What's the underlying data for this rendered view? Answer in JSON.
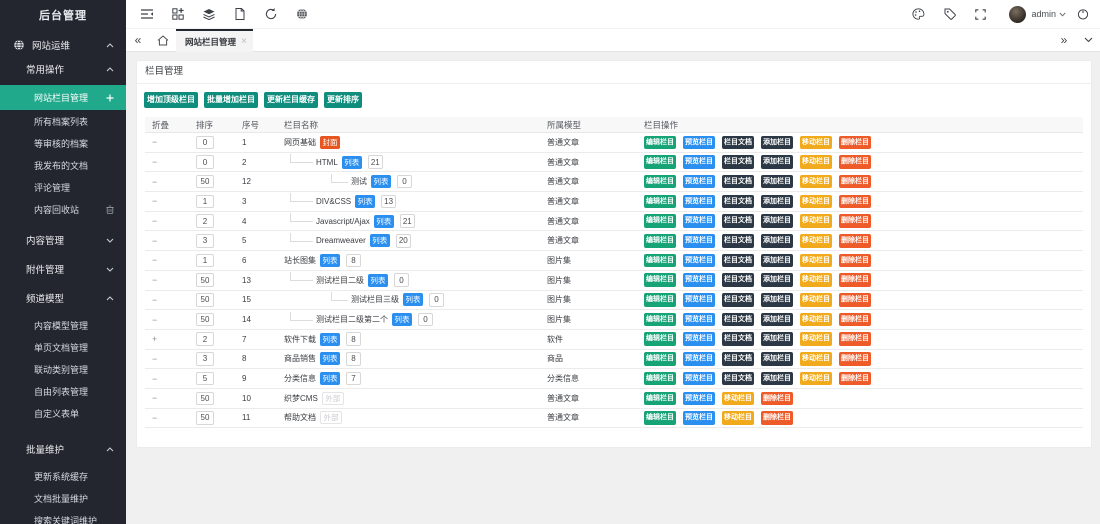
{
  "colors": {
    "accent": "#20a98b",
    "toolbar_button": "#108d7c",
    "btn_edit": "#16a376",
    "btn_preview": "#2b8ff0",
    "btn_dark": "#2c3845",
    "btn_move": "#f2aa1d",
    "btn_delete": "#ee5a28",
    "tag_cover": "#e8561f",
    "tag_list": "#2b8ff0"
  },
  "sidebar": {
    "brand": "后台管理",
    "root_item": {
      "label": "网站运维",
      "icon": "globe-icon",
      "chevron": "up"
    },
    "sections": [
      {
        "label": "常用操作",
        "chevron": "up",
        "items": [
          {
            "label": "网站栏目管理",
            "active": true,
            "trailing_icon": "plus-icon"
          },
          {
            "label": "所有档案列表"
          },
          {
            "label": "等审核的档案"
          },
          {
            "label": "我发布的文档"
          },
          {
            "label": "评论管理"
          },
          {
            "label": "内容回收站",
            "trailing_icon": "trash-icon"
          }
        ]
      },
      {
        "label": "内容管理",
        "chevron": "down",
        "items": []
      },
      {
        "label": "附件管理",
        "chevron": "down",
        "items": []
      },
      {
        "label": "频道模型",
        "chevron": "up",
        "items": [
          {
            "label": "内容模型管理"
          },
          {
            "label": "单页文档管理"
          },
          {
            "label": "联动类别管理"
          },
          {
            "label": "自由列表管理"
          },
          {
            "label": "自定义表单"
          }
        ]
      },
      {
        "label": "批量维护",
        "chevron": "up",
        "items": [
          {
            "label": "更新系统缓存"
          },
          {
            "label": "文档批量维护"
          },
          {
            "label": "搜索关键词维护"
          }
        ]
      }
    ]
  },
  "topbar": {
    "left_icons": [
      "menu-fold-icon",
      "add-grid-icon",
      "layers-icon",
      "document-icon",
      "refresh-icon",
      "globe-grid-icon"
    ],
    "right_icons": [
      "palette-icon",
      "tag-icon",
      "fullscreen-icon"
    ],
    "user": {
      "name": "admin",
      "avatar_icon": "avatar",
      "chevron_icon": "user-chevron-down-icon"
    },
    "power_icon": "power-icon"
  },
  "tabbar": {
    "scroll_left": "«",
    "home_icon": "home-icon",
    "collapse_icon": "tab-chevron-down-icon",
    "tabs": [
      {
        "label": "网站栏目管理",
        "active": true,
        "close": "×"
      }
    ],
    "overflow": "»"
  },
  "panel": {
    "title": "栏目管理",
    "toolbar_buttons": [
      "增加顶级栏目",
      "批量增加栏目",
      "更新栏目缓存",
      "更新排序"
    ]
  },
  "table": {
    "columns": [
      "折叠",
      "排序",
      "序号",
      "栏目名称",
      "所属模型",
      "栏目操作"
    ],
    "action_full": [
      "编辑栏目",
      "预览栏目",
      "栏目文档",
      "添加栏目",
      "移动栏目",
      "删除栏目"
    ],
    "action_limited": [
      "编辑栏目",
      "预览栏目",
      "移动栏目",
      "删除栏目"
    ],
    "rows": [
      {
        "fold": "−",
        "sort": "0",
        "sn": "1",
        "level": 0,
        "name": "网页基础",
        "tag": "封面",
        "tag_type": "cover",
        "count": null,
        "model": "普通文章",
        "actions": "full"
      },
      {
        "fold": "−",
        "sort": "0",
        "sn": "2",
        "level": 1,
        "name": "HTML",
        "tag": "列表",
        "tag_type": "list",
        "count": "21",
        "model": "普通文章",
        "actions": "full"
      },
      {
        "fold": "−",
        "sort": "50",
        "sn": "12",
        "level": 2,
        "name": "测试",
        "tag": "列表",
        "tag_type": "list",
        "count": "0",
        "model": "普通文章",
        "actions": "full"
      },
      {
        "fold": "−",
        "sort": "1",
        "sn": "3",
        "level": 1,
        "name": "DIV&CSS",
        "tag": "列表",
        "tag_type": "list",
        "count": "13",
        "model": "普通文章",
        "actions": "full"
      },
      {
        "fold": "−",
        "sort": "2",
        "sn": "4",
        "level": 1,
        "name": "Javascript/Ajax",
        "tag": "列表",
        "tag_type": "list",
        "count": "21",
        "model": "普通文章",
        "actions": "full"
      },
      {
        "fold": "−",
        "sort": "3",
        "sn": "5",
        "level": 1,
        "name": "Dreamweaver",
        "tag": "列表",
        "tag_type": "list",
        "count": "20",
        "model": "普通文章",
        "actions": "full"
      },
      {
        "fold": "−",
        "sort": "1",
        "sn": "6",
        "level": 0,
        "name": "站长图集",
        "tag": "列表",
        "tag_type": "list",
        "count": "8",
        "model": "图片集",
        "actions": "full"
      },
      {
        "fold": "−",
        "sort": "50",
        "sn": "13",
        "level": 1,
        "name": "测试栏目二级",
        "tag": "列表",
        "tag_type": "list",
        "count": "0",
        "model": "图片集",
        "actions": "full"
      },
      {
        "fold": "−",
        "sort": "50",
        "sn": "15",
        "level": 2,
        "name": "测试栏目三级",
        "tag": "列表",
        "tag_type": "list",
        "count": "0",
        "model": "图片集",
        "actions": "full"
      },
      {
        "fold": "−",
        "sort": "50",
        "sn": "14",
        "level": 1,
        "name": "测试栏目二级第二个",
        "tag": "列表",
        "tag_type": "list",
        "count": "0",
        "model": "图片集",
        "actions": "full"
      },
      {
        "fold": "+",
        "sort": "2",
        "sn": "7",
        "level": 0,
        "name": "软件下载",
        "tag": "列表",
        "tag_type": "list",
        "count": "8",
        "model": "软件",
        "actions": "full"
      },
      {
        "fold": "−",
        "sort": "3",
        "sn": "8",
        "level": 0,
        "name": "商品销售",
        "tag": "列表",
        "tag_type": "list",
        "count": "8",
        "model": "商品",
        "actions": "full"
      },
      {
        "fold": "−",
        "sort": "5",
        "sn": "9",
        "level": 0,
        "name": "分类信息",
        "tag": "列表",
        "tag_type": "list",
        "count": "7",
        "model": "分类信息",
        "actions": "full"
      },
      {
        "fold": "−",
        "sort": "50",
        "sn": "10",
        "level": 0,
        "name": "织梦CMS",
        "tag": "外部",
        "tag_type": "ghost",
        "count": null,
        "model": "普通文章",
        "actions": "limited"
      },
      {
        "fold": "−",
        "sort": "50",
        "sn": "11",
        "level": 0,
        "name": "帮助文档",
        "tag": "外部",
        "tag_type": "ghost",
        "count": null,
        "model": "普通文章",
        "actions": "limited"
      }
    ]
  }
}
